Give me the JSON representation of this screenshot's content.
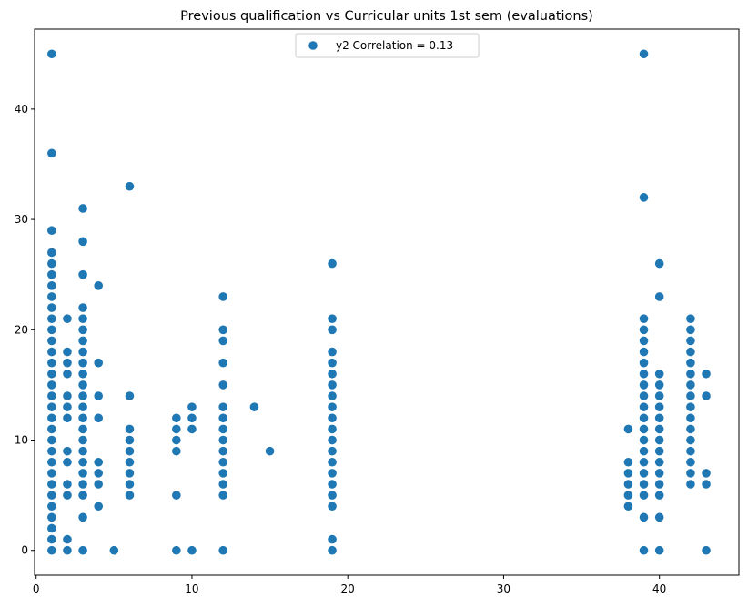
{
  "chart_data": {
    "type": "scatter",
    "title": "Previous qualification vs Curricular units 1st sem (evaluations)",
    "xlabel": "",
    "ylabel": "",
    "xlim": [
      -0.1,
      45.1
    ],
    "ylim": [
      -2.25,
      47.25
    ],
    "xticks": [
      0,
      10,
      20,
      30,
      40
    ],
    "yticks": [
      0,
      10,
      20,
      30,
      40
    ],
    "grid": false,
    "legend": {
      "position": "top-center",
      "label": "y2 Correlation = 0.13"
    },
    "series": [
      {
        "name": "y2 Correlation = 0.13",
        "color": "#1f77b4",
        "columns": [
          {
            "x": 1,
            "y": [
              0,
              1,
              2,
              3,
              4,
              5,
              6,
              7,
              8,
              9,
              10,
              11,
              12,
              13,
              14,
              15,
              16,
              17,
              18,
              19,
              20,
              21,
              22,
              23,
              24,
              25,
              26,
              27,
              29,
              36,
              45
            ]
          },
          {
            "x": 2,
            "y": [
              0,
              1,
              5,
              6,
              8,
              9,
              12,
              13,
              14,
              16,
              17,
              18,
              21
            ]
          },
          {
            "x": 3,
            "y": [
              0,
              3,
              5,
              6,
              7,
              8,
              9,
              10,
              11,
              12,
              13,
              14,
              15,
              16,
              17,
              18,
              19,
              20,
              21,
              22,
              25,
              28,
              31
            ]
          },
          {
            "x": 4,
            "y": [
              4,
              6,
              7,
              8,
              12,
              14,
              17,
              24
            ]
          },
          {
            "x": 5,
            "y": [
              0
            ]
          },
          {
            "x": 6,
            "y": [
              5,
              6,
              7,
              8,
              9,
              10,
              11,
              14,
              33
            ]
          },
          {
            "x": 9,
            "y": [
              0,
              5,
              9,
              10,
              11,
              12
            ]
          },
          {
            "x": 10,
            "y": [
              0,
              11,
              12,
              13
            ]
          },
          {
            "x": 12,
            "y": [
              0,
              5,
              6,
              7,
              8,
              9,
              10,
              11,
              12,
              13,
              15,
              17,
              19,
              20,
              23
            ]
          },
          {
            "x": 14,
            "y": [
              13
            ]
          },
          {
            "x": 15,
            "y": [
              9
            ]
          },
          {
            "x": 19,
            "y": [
              0,
              1,
              4,
              5,
              6,
              7,
              8,
              9,
              10,
              11,
              12,
              13,
              14,
              15,
              16,
              17,
              18,
              20,
              21,
              26
            ]
          },
          {
            "x": 38,
            "y": [
              4,
              5,
              6,
              7,
              8,
              11
            ]
          },
          {
            "x": 39,
            "y": [
              0,
              3,
              5,
              6,
              7,
              8,
              9,
              10,
              11,
              12,
              13,
              14,
              15,
              16,
              17,
              18,
              19,
              20,
              21,
              32,
              45
            ]
          },
          {
            "x": 40,
            "y": [
              0,
              3,
              5,
              6,
              7,
              8,
              9,
              10,
              11,
              12,
              13,
              14,
              15,
              16,
              23,
              26
            ]
          },
          {
            "x": 42,
            "y": [
              6,
              7,
              8,
              9,
              10,
              11,
              12,
              13,
              14,
              15,
              16,
              17,
              18,
              19,
              20,
              21
            ]
          },
          {
            "x": 43,
            "y": [
              0,
              6,
              7,
              14,
              16
            ]
          }
        ]
      }
    ]
  }
}
